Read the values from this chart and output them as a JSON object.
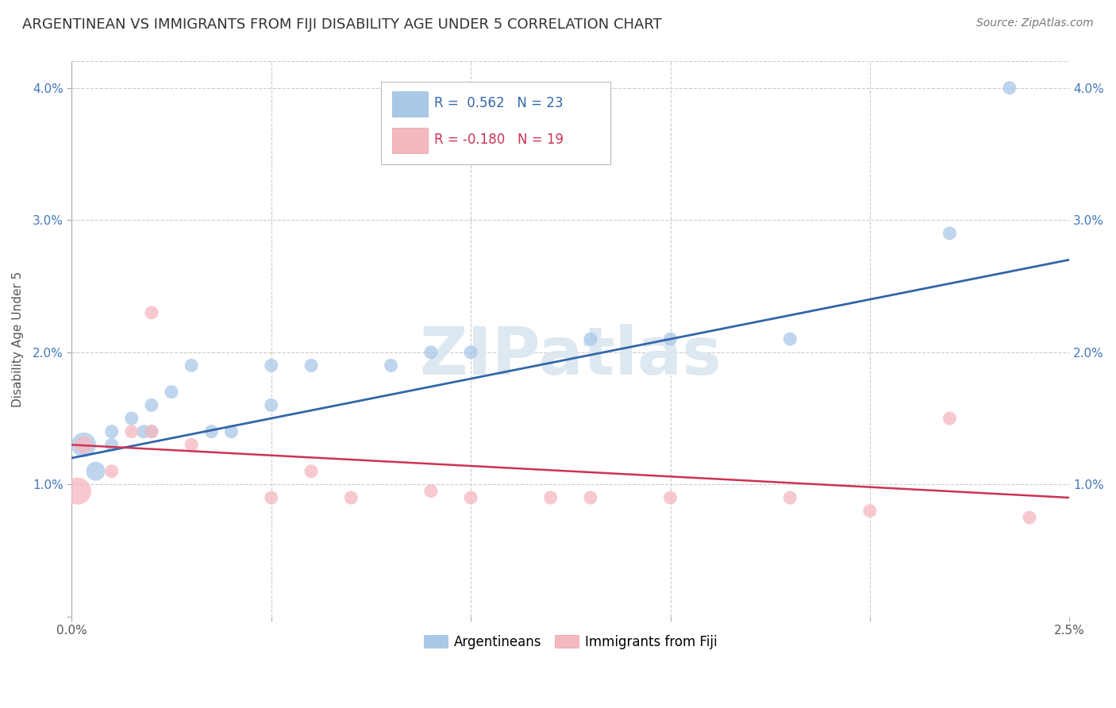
{
  "title": "ARGENTINEAN VS IMMIGRANTS FROM FIJI DISABILITY AGE UNDER 5 CORRELATION CHART",
  "source": "Source: ZipAtlas.com",
  "ylabel": "Disability Age Under 5",
  "xlim": [
    0.0,
    0.025
  ],
  "ylim": [
    0.0,
    0.042
  ],
  "blue_R": 0.562,
  "blue_N": 23,
  "pink_R": -0.18,
  "pink_N": 19,
  "watermark": "ZIPatlas",
  "blue_color": "#a8c8e8",
  "pink_color": "#f5b8c0",
  "blue_line_color": "#3366aa",
  "pink_line_color": "#cc3355",
  "blue_x": [
    0.0003,
    0.0006,
    0.001,
    0.001,
    0.0015,
    0.0018,
    0.002,
    0.002,
    0.0025,
    0.003,
    0.0035,
    0.004,
    0.005,
    0.005,
    0.006,
    0.008,
    0.009,
    0.01,
    0.013,
    0.015,
    0.018,
    0.022,
    0.0235
  ],
  "blue_y": [
    0.013,
    0.011,
    0.013,
    0.014,
    0.015,
    0.014,
    0.016,
    0.014,
    0.017,
    0.019,
    0.014,
    0.014,
    0.019,
    0.016,
    0.019,
    0.019,
    0.02,
    0.02,
    0.021,
    0.021,
    0.021,
    0.029,
    0.04
  ],
  "blue_sizes": [
    500,
    300,
    150,
    150,
    150,
    150,
    150,
    150,
    150,
    150,
    150,
    150,
    150,
    150,
    150,
    150,
    150,
    150,
    150,
    150,
    150,
    150,
    150
  ],
  "pink_x": [
    0.00015,
    0.0003,
    0.001,
    0.0015,
    0.002,
    0.002,
    0.003,
    0.005,
    0.006,
    0.007,
    0.009,
    0.01,
    0.012,
    0.013,
    0.015,
    0.018,
    0.02,
    0.022,
    0.024
  ],
  "pink_y": [
    0.0095,
    0.013,
    0.011,
    0.014,
    0.014,
    0.023,
    0.013,
    0.009,
    0.011,
    0.009,
    0.0095,
    0.009,
    0.009,
    0.009,
    0.009,
    0.009,
    0.008,
    0.015,
    0.0075
  ],
  "pink_sizes": [
    600,
    250,
    150,
    150,
    150,
    150,
    150,
    150,
    150,
    150,
    150,
    150,
    150,
    150,
    150,
    150,
    150,
    150,
    150
  ],
  "blue_trendline_x": [
    0.0,
    0.025
  ],
  "blue_trendline_y": [
    0.012,
    0.027
  ],
  "pink_trendline_x": [
    0.0,
    0.025
  ],
  "pink_trendline_y": [
    0.013,
    0.009
  ],
  "background_color": "#ffffff",
  "grid_color": "#cccccc",
  "title_fontsize": 13,
  "axis_label_fontsize": 11,
  "tick_fontsize": 11
}
